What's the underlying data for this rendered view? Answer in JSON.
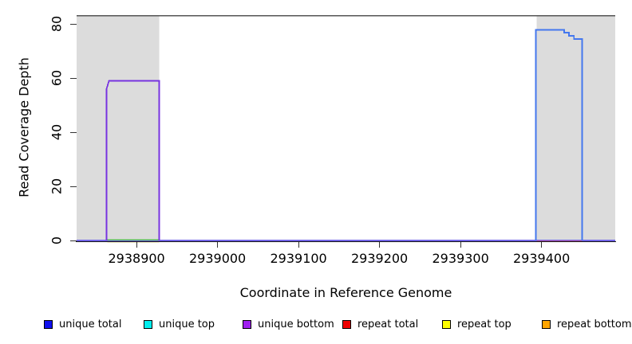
{
  "figure": {
    "xlabel": "Coordinate in Reference Genome",
    "ylabel": "Read Coverage Depth"
  },
  "chart_data": {
    "type": "line",
    "title": "",
    "xlabel": "Coordinate in Reference Genome",
    "ylabel": "Read Coverage Depth",
    "xlim": [
      2938826,
      2939491
    ],
    "ylim": [
      0,
      83.2
    ],
    "x_ticks": [
      2938900,
      2939000,
      2939100,
      2939200,
      2939300,
      2939400
    ],
    "y_ticks": [
      0,
      20,
      40,
      60,
      80
    ],
    "grid": false,
    "frame_top_color": "#555555",
    "axis_color": "#111111",
    "shaded_regions": [
      {
        "name": "left-gray-region",
        "x0": 2938826,
        "x1": 2938928,
        "color": "#DCDCDC"
      },
      {
        "name": "right-gray-region",
        "x0": 2939394,
        "x1": 2939491,
        "color": "#DCDCDC"
      }
    ],
    "series": [
      {
        "name": "zero-baseline",
        "color": "#7265E8",
        "width": 1.6,
        "dy": 0,
        "points": [
          [
            2938826,
            0
          ],
          [
            2939491,
            0
          ]
        ]
      },
      {
        "name": "repeat-top-zero-segment",
        "color": "#E9E29A",
        "width": 1.6,
        "dy": 1.8,
        "points": [
          [
            2938864,
            0
          ],
          [
            2938928,
            0
          ]
        ]
      },
      {
        "name": "repeat-total-zero-segment",
        "color": "#EE4455",
        "width": 1.4,
        "dy": 1.0,
        "points": [
          [
            2939394,
            0
          ],
          [
            2939450,
            0
          ]
        ]
      },
      {
        "name": "unique-top-zero-segment",
        "color": "#55BB55",
        "width": 1.5,
        "dy": -0.8,
        "points": [
          [
            2938864,
            0
          ],
          [
            2938928,
            0
          ]
        ]
      },
      {
        "name": "unique-bottom-block",
        "color": "#7733E0",
        "width": 1.8,
        "dy": 0,
        "points": [
          [
            2938863,
            0
          ],
          [
            2938863,
            56
          ],
          [
            2938864.5,
            57.5
          ],
          [
            2938866,
            59
          ],
          [
            2938928,
            59
          ],
          [
            2938928,
            0
          ]
        ]
      },
      {
        "name": "unique-total-block",
        "color": "#4477EE",
        "width": 1.8,
        "dy": 0,
        "points": [
          [
            2939393,
            0
          ],
          [
            2939393,
            77.8
          ],
          [
            2939428,
            77.8
          ],
          [
            2939428,
            76.8
          ],
          [
            2939434,
            76.8
          ],
          [
            2939434,
            75.6
          ],
          [
            2939440,
            75.6
          ],
          [
            2939440,
            74.4
          ],
          [
            2939450,
            74.4
          ],
          [
            2939450,
            0
          ]
        ]
      }
    ],
    "legend": {
      "position": "bottom",
      "items": [
        {
          "label": "unique total",
          "color": "#1010EE"
        },
        {
          "label": "unique top",
          "color": "#00EEEE"
        },
        {
          "label": "unique bottom",
          "color": "#A020F0"
        },
        {
          "label": "repeat total",
          "color": "#EE0000"
        },
        {
          "label": "repeat top",
          "color": "#FFFF00"
        },
        {
          "label": "repeat bottom",
          "color": "#FFA500"
        }
      ]
    }
  }
}
